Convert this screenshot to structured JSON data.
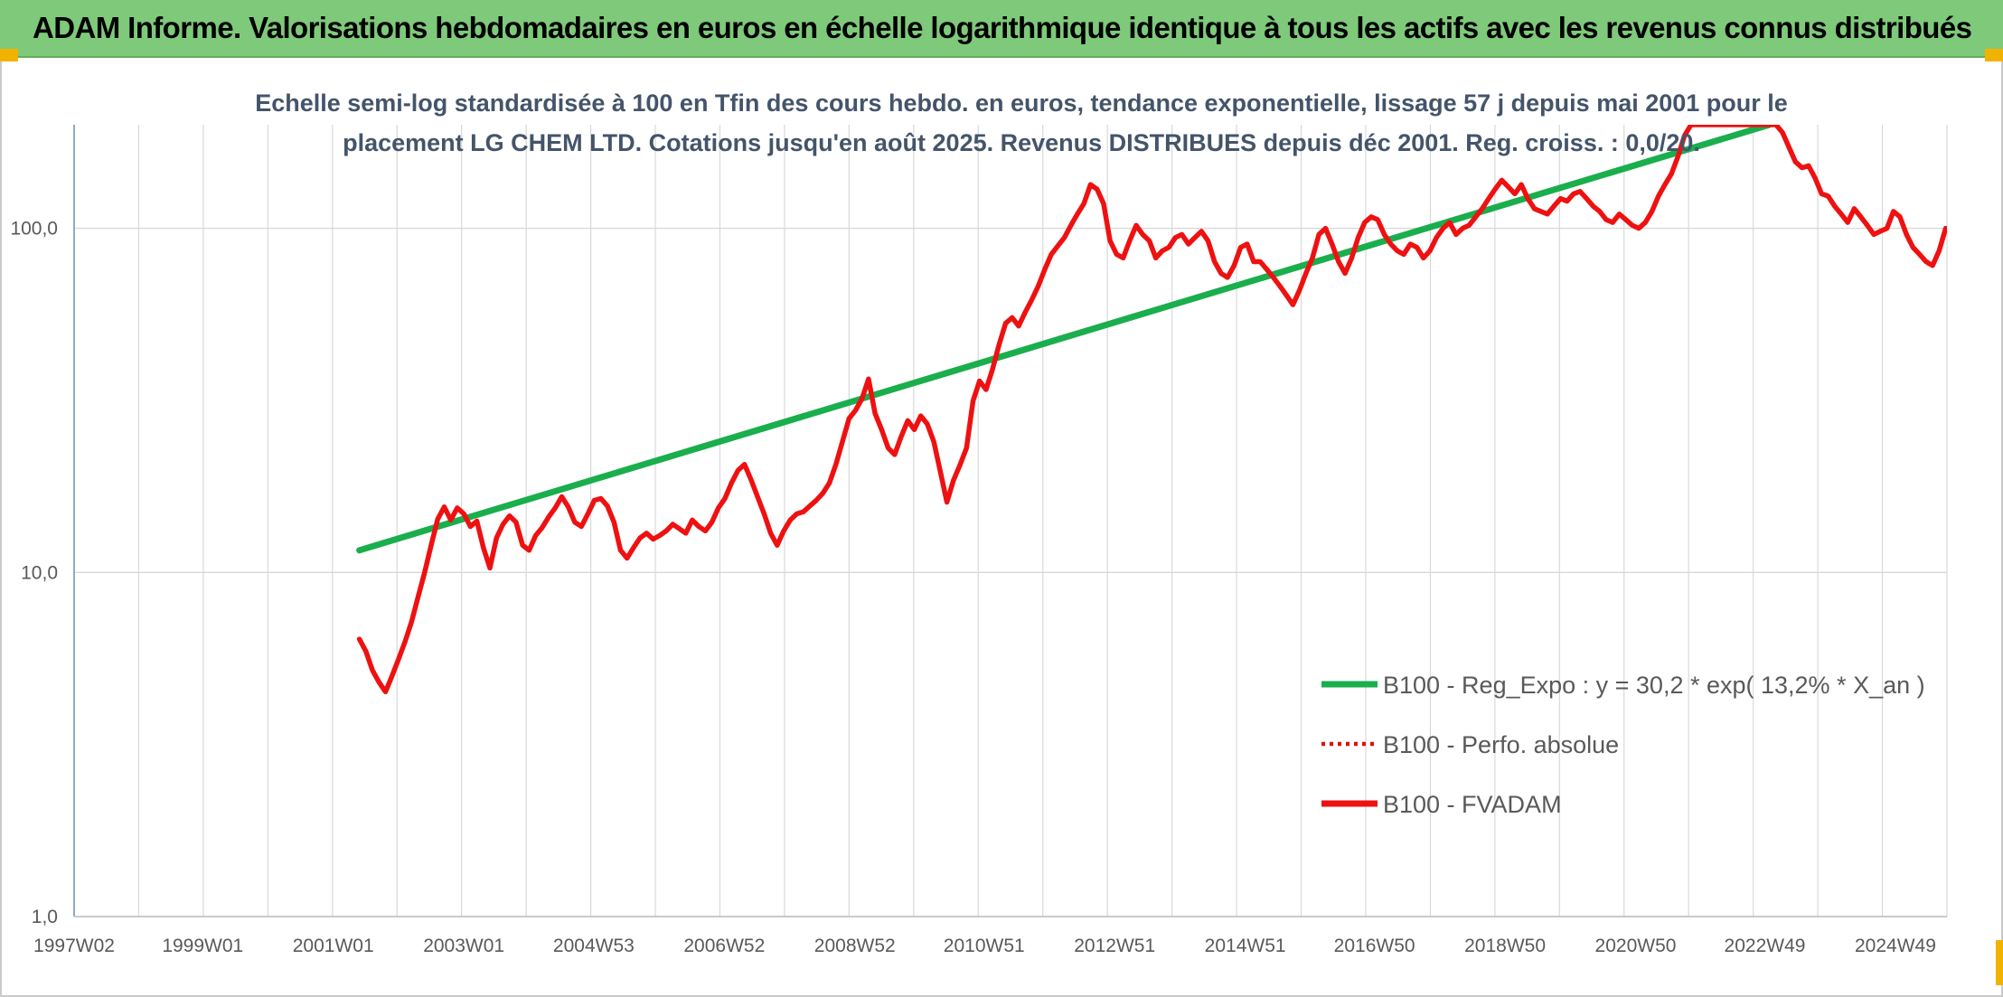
{
  "header": {
    "title": "ADAM Informe. Valorisations hebdomadaires en euros en échelle logarithmique identique à tous les actifs avec les revenus connus distribués"
  },
  "colors": {
    "banner": "#7ec97a",
    "trend": "#1aae4d",
    "fvadam": "#ee1111",
    "perfo": "#dd1111",
    "subtitle": "#44546a",
    "grid": "#d9d9d9",
    "accent_marks": "#f2b300"
  },
  "chart_data": {
    "type": "line",
    "subtitle_lines": [
      "Echelle semi-log standardisée à 100 en Tfin des cours hebdo. en euros, tendance exponentielle, lissage 57 j depuis mai 2001 pour le",
      "placement LG CHEM LTD. Cotations jusqu'en août 2025. Revenus DISTRIBUES depuis déc 2001. Reg. croiss. : 0,0/20."
    ],
    "y_scale": "log",
    "ylim": [
      1,
      200
    ],
    "y_ticks": [
      {
        "value": 1,
        "label": "1,0"
      },
      {
        "value": 10,
        "label": "10,0"
      },
      {
        "value": 100,
        "label": "100,0"
      }
    ],
    "x_range_years": [
      1997.03,
      2025.72
    ],
    "x_ticks": [
      {
        "year": 1997.03,
        "label": "1997W02"
      },
      {
        "year": 1999.0,
        "label": "1999W01"
      },
      {
        "year": 2001.0,
        "label": "2001W01"
      },
      {
        "year": 2003.0,
        "label": "2003W01"
      },
      {
        "year": 2004.99,
        "label": "2004W53"
      },
      {
        "year": 2006.99,
        "label": "2006W52"
      },
      {
        "year": 2008.99,
        "label": "2008W52"
      },
      {
        "year": 2010.97,
        "label": "2010W51"
      },
      {
        "year": 2012.97,
        "label": "2012W51"
      },
      {
        "year": 2014.97,
        "label": "2014W51"
      },
      {
        "year": 2016.95,
        "label": "2016W50"
      },
      {
        "year": 2018.95,
        "label": "2018W50"
      },
      {
        "year": 2020.95,
        "label": "2020W50"
      },
      {
        "year": 2022.93,
        "label": "2022W49"
      },
      {
        "year": 2024.93,
        "label": "2024W49"
      }
    ],
    "grid": true,
    "legend_placement": "bottom-right",
    "series": [
      {
        "name": "B100 - Reg_Expo : y = 30,2 * exp( 13,2% *  X_an )",
        "kind": "trend",
        "style": "solid",
        "points": [
          [
            2001.4,
            11.6
          ],
          [
            2023.0,
            200
          ]
        ]
      },
      {
        "name": "B100 - Perfo. absolue",
        "kind": "perfo",
        "style": "dotted",
        "points": []
      },
      {
        "name": "B100 - FVADAM",
        "kind": "fvadam",
        "style": "solid",
        "points": [
          [
            2001.4,
            6.4
          ],
          [
            2001.5,
            5.9
          ],
          [
            2001.6,
            5.2
          ],
          [
            2001.7,
            4.8
          ],
          [
            2001.8,
            4.5
          ],
          [
            2001.9,
            5.0
          ],
          [
            2002.0,
            5.6
          ],
          [
            2002.1,
            6.3
          ],
          [
            2002.2,
            7.2
          ],
          [
            2002.3,
            8.5
          ],
          [
            2002.4,
            10.0
          ],
          [
            2002.5,
            12.0
          ],
          [
            2002.6,
            14.3
          ],
          [
            2002.7,
            15.5
          ],
          [
            2002.8,
            14.2
          ],
          [
            2002.9,
            15.4
          ],
          [
            2003.0,
            14.8
          ],
          [
            2003.1,
            13.6
          ],
          [
            2003.2,
            14.1
          ],
          [
            2003.3,
            11.8
          ],
          [
            2003.4,
            10.3
          ],
          [
            2003.5,
            12.6
          ],
          [
            2003.6,
            13.8
          ],
          [
            2003.7,
            14.6
          ],
          [
            2003.8,
            14.0
          ],
          [
            2003.9,
            12.0
          ],
          [
            2004.0,
            11.6
          ],
          [
            2004.1,
            12.8
          ],
          [
            2004.2,
            13.5
          ],
          [
            2004.3,
            14.5
          ],
          [
            2004.4,
            15.4
          ],
          [
            2004.5,
            16.6
          ],
          [
            2004.6,
            15.5
          ],
          [
            2004.7,
            14.0
          ],
          [
            2004.8,
            13.6
          ],
          [
            2004.9,
            14.8
          ],
          [
            2005.0,
            16.2
          ],
          [
            2005.1,
            16.4
          ],
          [
            2005.2,
            15.6
          ],
          [
            2005.3,
            14.0
          ],
          [
            2005.4,
            11.6
          ],
          [
            2005.5,
            11.0
          ],
          [
            2005.6,
            11.8
          ],
          [
            2005.7,
            12.6
          ],
          [
            2005.8,
            13.0
          ],
          [
            2005.9,
            12.5
          ],
          [
            2006.0,
            12.8
          ],
          [
            2006.1,
            13.2
          ],
          [
            2006.2,
            13.8
          ],
          [
            2006.3,
            13.4
          ],
          [
            2006.4,
            13.0
          ],
          [
            2006.5,
            14.2
          ],
          [
            2006.6,
            13.6
          ],
          [
            2006.7,
            13.2
          ],
          [
            2006.8,
            14.0
          ],
          [
            2006.9,
            15.4
          ],
          [
            2007.0,
            16.4
          ],
          [
            2007.1,
            18.2
          ],
          [
            2007.2,
            19.8
          ],
          [
            2007.3,
            20.6
          ],
          [
            2007.4,
            18.6
          ],
          [
            2007.5,
            16.6
          ],
          [
            2007.6,
            14.8
          ],
          [
            2007.7,
            13.0
          ],
          [
            2007.8,
            12.0
          ],
          [
            2007.9,
            13.2
          ],
          [
            2008.0,
            14.2
          ],
          [
            2008.1,
            14.8
          ],
          [
            2008.2,
            15.0
          ],
          [
            2008.3,
            15.6
          ],
          [
            2008.4,
            16.2
          ],
          [
            2008.5,
            17.0
          ],
          [
            2008.6,
            18.2
          ],
          [
            2008.7,
            20.6
          ],
          [
            2008.8,
            24.0
          ],
          [
            2008.9,
            28.0
          ],
          [
            2009.0,
            29.6
          ],
          [
            2009.1,
            32.0
          ],
          [
            2009.2,
            36.5
          ],
          [
            2009.3,
            29.0
          ],
          [
            2009.4,
            26.0
          ],
          [
            2009.5,
            23.0
          ],
          [
            2009.6,
            22.0
          ],
          [
            2009.7,
            24.8
          ],
          [
            2009.8,
            27.6
          ],
          [
            2009.9,
            26.0
          ],
          [
            2010.0,
            28.5
          ],
          [
            2010.1,
            27.0
          ],
          [
            2010.2,
            24.0
          ],
          [
            2010.3,
            19.6
          ],
          [
            2010.4,
            16.0
          ],
          [
            2010.5,
            18.5
          ],
          [
            2010.6,
            20.5
          ],
          [
            2010.7,
            23.0
          ],
          [
            2010.8,
            31.5
          ],
          [
            2010.9,
            36.0
          ],
          [
            2011.0,
            34.0
          ],
          [
            2011.1,
            39.0
          ],
          [
            2011.2,
            46.0
          ],
          [
            2011.3,
            53.0
          ],
          [
            2011.4,
            55.0
          ],
          [
            2011.5,
            52.0
          ],
          [
            2011.6,
            57.0
          ],
          [
            2011.7,
            62.0
          ],
          [
            2011.8,
            68.0
          ],
          [
            2011.9,
            76.0
          ],
          [
            2012.0,
            84.0
          ],
          [
            2012.1,
            89.0
          ],
          [
            2012.2,
            94.0
          ],
          [
            2012.3,
            102.0
          ],
          [
            2012.4,
            110.0
          ],
          [
            2012.5,
            118.0
          ],
          [
            2012.6,
            134.0
          ],
          [
            2012.7,
            130.0
          ],
          [
            2012.8,
            118.0
          ],
          [
            2012.9,
            92.0
          ],
          [
            2013.0,
            84.0
          ],
          [
            2013.1,
            82.0
          ],
          [
            2013.2,
            92.0
          ],
          [
            2013.3,
            102.0
          ],
          [
            2013.4,
            96.0
          ],
          [
            2013.5,
            92.0
          ],
          [
            2013.6,
            82.0
          ],
          [
            2013.7,
            86.0
          ],
          [
            2013.8,
            88.0
          ],
          [
            2013.9,
            94.0
          ],
          [
            2014.0,
            96.0
          ],
          [
            2014.1,
            90.0
          ],
          [
            2014.2,
            94.0
          ],
          [
            2014.3,
            98.0
          ],
          [
            2014.4,
            92.0
          ],
          [
            2014.5,
            80.0
          ],
          [
            2014.6,
            74.0
          ],
          [
            2014.7,
            72.0
          ],
          [
            2014.8,
            78.0
          ],
          [
            2014.9,
            88.0
          ],
          [
            2015.0,
            90.0
          ],
          [
            2015.1,
            80.0
          ],
          [
            2015.2,
            80.0
          ],
          [
            2015.3,
            76.0
          ],
          [
            2015.4,
            72.0
          ],
          [
            2015.5,
            68.0
          ],
          [
            2015.6,
            64.0
          ],
          [
            2015.7,
            60.0
          ],
          [
            2015.8,
            66.0
          ],
          [
            2015.9,
            74.0
          ],
          [
            2016.0,
            82.0
          ],
          [
            2016.1,
            96.0
          ],
          [
            2016.2,
            100.0
          ],
          [
            2016.3,
            90.0
          ],
          [
            2016.4,
            80.0
          ],
          [
            2016.5,
            74.0
          ],
          [
            2016.6,
            82.0
          ],
          [
            2016.7,
            94.0
          ],
          [
            2016.8,
            104.0
          ],
          [
            2016.9,
            108.0
          ],
          [
            2017.0,
            106.0
          ],
          [
            2017.1,
            96.0
          ],
          [
            2017.2,
            90.0
          ],
          [
            2017.3,
            86.0
          ],
          [
            2017.4,
            84.0
          ],
          [
            2017.5,
            90.0
          ],
          [
            2017.6,
            88.0
          ],
          [
            2017.7,
            82.0
          ],
          [
            2017.8,
            86.0
          ],
          [
            2017.9,
            94.0
          ],
          [
            2018.0,
            100.0
          ],
          [
            2018.1,
            104.0
          ],
          [
            2018.2,
            96.0
          ],
          [
            2018.3,
            100.0
          ],
          [
            2018.4,
            102.0
          ],
          [
            2018.5,
            108.0
          ],
          [
            2018.6,
            114.0
          ],
          [
            2018.7,
            122.0
          ],
          [
            2018.8,
            130.0
          ],
          [
            2018.9,
            138.0
          ],
          [
            2019.0,
            132.0
          ],
          [
            2019.1,
            126.0
          ],
          [
            2019.2,
            134.0
          ],
          [
            2019.3,
            122.0
          ],
          [
            2019.4,
            114.0
          ],
          [
            2019.5,
            112.0
          ],
          [
            2019.6,
            110.0
          ],
          [
            2019.7,
            116.0
          ],
          [
            2019.8,
            122.0
          ],
          [
            2019.9,
            120.0
          ],
          [
            2020.0,
            126.0
          ],
          [
            2020.1,
            128.0
          ],
          [
            2020.2,
            122.0
          ],
          [
            2020.3,
            116.0
          ],
          [
            2020.4,
            112.0
          ],
          [
            2020.5,
            106.0
          ],
          [
            2020.6,
            104.0
          ],
          [
            2020.7,
            110.0
          ],
          [
            2020.8,
            106.0
          ],
          [
            2020.9,
            102.0
          ],
          [
            2021.0,
            100.0
          ],
          [
            2021.1,
            104.0
          ],
          [
            2021.2,
            112.0
          ],
          [
            2021.3,
            124.0
          ],
          [
            2021.4,
            134.0
          ],
          [
            2021.5,
            144.0
          ],
          [
            2021.6,
            162.0
          ],
          [
            2021.7,
            186.0
          ],
          [
            2021.8,
            200.0
          ],
          [
            2023.1,
            200.0
          ],
          [
            2023.2,
            190.0
          ],
          [
            2023.3,
            172.0
          ],
          [
            2023.4,
            156.0
          ],
          [
            2023.5,
            150.0
          ],
          [
            2023.6,
            152.0
          ],
          [
            2023.7,
            140.0
          ],
          [
            2023.8,
            126.0
          ],
          [
            2023.9,
            124.0
          ],
          [
            2024.0,
            116.0
          ],
          [
            2024.1,
            110.0
          ],
          [
            2024.2,
            104.0
          ],
          [
            2024.3,
            114.0
          ],
          [
            2024.4,
            108.0
          ],
          [
            2024.5,
            102.0
          ],
          [
            2024.6,
            96.0
          ],
          [
            2024.7,
            98.0
          ],
          [
            2024.8,
            100.0
          ],
          [
            2024.9,
            112.0
          ],
          [
            2025.0,
            108.0
          ],
          [
            2025.1,
            96.0
          ],
          [
            2025.2,
            88.0
          ],
          [
            2025.3,
            84.0
          ],
          [
            2025.4,
            80.0
          ],
          [
            2025.5,
            78.0
          ],
          [
            2025.6,
            86.0
          ],
          [
            2025.7,
            100.0
          ]
        ]
      }
    ]
  }
}
